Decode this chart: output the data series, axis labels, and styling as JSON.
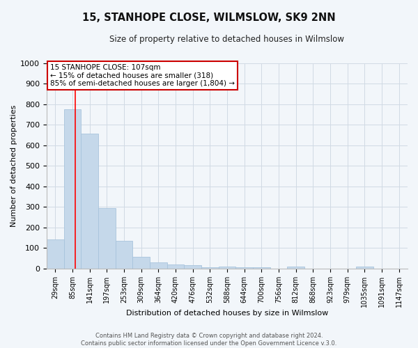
{
  "title": "15, STANHOPE CLOSE, WILMSLOW, SK9 2NN",
  "subtitle": "Size of property relative to detached houses in Wilmslow",
  "xlabel": "Distribution of detached houses by size in Wilmslow",
  "ylabel": "Number of detached properties",
  "bar_labels": [
    "29sqm",
    "85sqm",
    "141sqm",
    "197sqm",
    "253sqm",
    "309sqm",
    "364sqm",
    "420sqm",
    "476sqm",
    "532sqm",
    "588sqm",
    "644sqm",
    "700sqm",
    "756sqm",
    "812sqm",
    "868sqm",
    "923sqm",
    "979sqm",
    "1035sqm",
    "1091sqm",
    "1147sqm"
  ],
  "bar_values": [
    140,
    775,
    655,
    295,
    135,
    57,
    28,
    19,
    15,
    7,
    8,
    7,
    7,
    0,
    8,
    0,
    0,
    0,
    8,
    0,
    0
  ],
  "bar_color": "#c5d8ea",
  "bar_edge_color": "#a8c4dc",
  "red_line_x": 1.18,
  "ylim": [
    0,
    1000
  ],
  "yticks": [
    0,
    100,
    200,
    300,
    400,
    500,
    600,
    700,
    800,
    900,
    1000
  ],
  "annotation_title": "15 STANHOPE CLOSE: 107sqm",
  "annotation_line1": "← 15% of detached houses are smaller (318)",
  "annotation_line2": "85% of semi-detached houses are larger (1,804) →",
  "annotation_box_color": "#ffffff",
  "annotation_box_edge": "#cc0000",
  "footer1": "Contains HM Land Registry data © Crown copyright and database right 2024.",
  "footer2": "Contains public sector information licensed under the Open Government Licence v.3.0.",
  "bg_color": "#f2f6fa",
  "plot_bg_color": "#f2f6fa",
  "grid_color": "#d0dae4"
}
